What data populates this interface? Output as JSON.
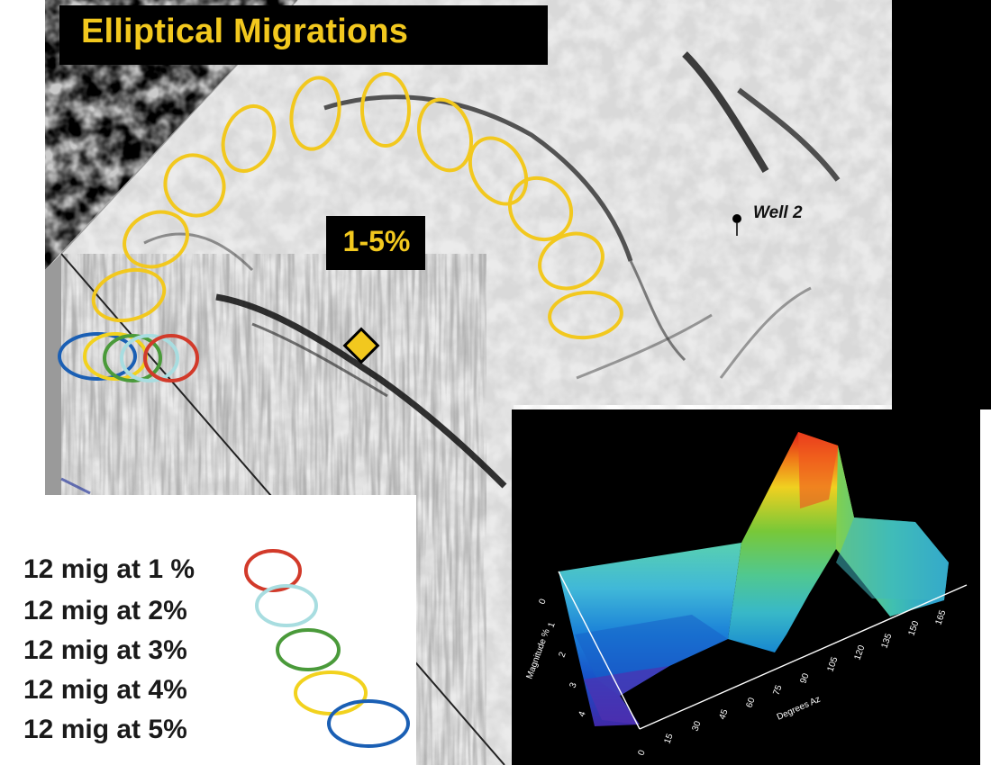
{
  "title": "Elliptical Migrations",
  "center_label": "1-5%",
  "well_label": "Well  2",
  "legend": [
    {
      "text": "12 mig at 1 %",
      "color": "#d23a2a"
    },
    {
      "text": "12 mig at 2%",
      "color": "#a8dde0"
    },
    {
      "text": "12 mig at 3%",
      "color": "#4a9a3a"
    },
    {
      "text": "12 mig at 4%",
      "color": "#f2d21e"
    },
    {
      "text": "12 mig at 5%",
      "color": "#1a5fb4"
    }
  ],
  "ellipse_color": "#f2c81e",
  "surface_chart": {
    "x_axis_label": "Degrees Az",
    "x_ticks": [
      "0",
      "15",
      "30",
      "45",
      "60",
      "75",
      "90",
      "105",
      "120",
      "135",
      "150",
      "165"
    ],
    "y_axis_label": "Magnitude %",
    "y_ticks": [
      "0",
      "1",
      "2",
      "3",
      "4"
    ]
  }
}
